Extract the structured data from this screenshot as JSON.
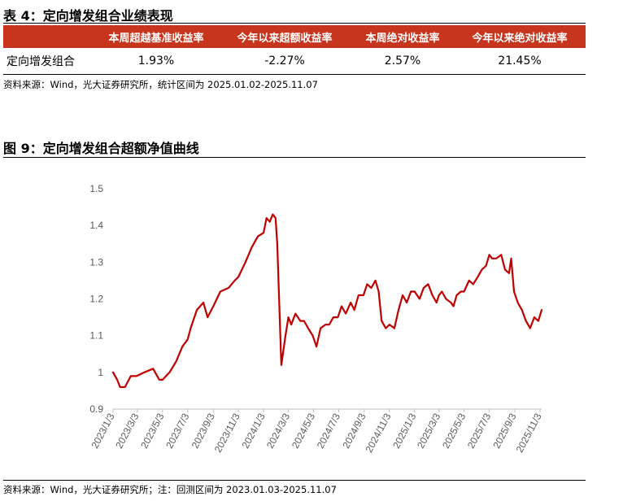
{
  "table": {
    "title": "表 4：定向增发组合业绩表现",
    "headers": [
      "",
      "本周超越基准收益率",
      "今年以来超额收益率",
      "本周绝对收益率",
      "今年以来绝对收益率"
    ],
    "row": {
      "label": "定向增发组合",
      "values": [
        "1.93%",
        "-2.27%",
        "2.57%",
        "21.45%"
      ]
    },
    "source": "资料来源：Wind，光大证券研究所，统计区间为 2025.01.02-2025.11.07",
    "header_color": "#C8351E"
  },
  "figure": {
    "title": "图 9：定向增发组合超额净值曲线",
    "source": "资料来源：Wind，光大证券研究所；注：回测区间为 2023.01.03-2025.11.07"
  },
  "chart_data": {
    "type": "line",
    "line_color": "#C00000",
    "ylim": [
      0.9,
      1.5
    ],
    "y_ticks": [
      "0.9",
      "1",
      "1.1",
      "1.2",
      "1.3",
      "1.4",
      "1.5"
    ],
    "x_ticks": [
      "2023/1/3",
      "2023/3/3",
      "2023/5/3",
      "2023/7/3",
      "2023/9/3",
      "2023/11/3",
      "2024/1/3",
      "2024/3/3",
      "2024/5/3",
      "2024/7/3",
      "2024/9/3",
      "2024/11/3",
      "2025/1/3",
      "2025/3/3",
      "2025/5/3",
      "2025/7/3",
      "2025/9/3",
      "2025/11/3"
    ],
    "xlim": [
      "2023/1/3",
      "2025/11/7"
    ],
    "grid": false,
    "series": [
      {
        "x": [
          "2023/1/3",
          "2023/1/13",
          "2023/1/20",
          "2023/2/1",
          "2023/2/15",
          "2023/3/1",
          "2023/3/20",
          "2023/4/10",
          "2023/4/25",
          "2023/5/3",
          "2023/5/20",
          "2023/6/5",
          "2023/6/20",
          "2023/7/3",
          "2023/7/10",
          "2023/7/25",
          "2023/8/10",
          "2023/8/20",
          "2023/9/3",
          "2023/9/20",
          "2023/10/10",
          "2023/10/25",
          "2023/11/3",
          "2023/11/20",
          "2023/12/5",
          "2023/12/20",
          "2024/1/3",
          "2024/1/10",
          "2024/1/18",
          "2024/1/25",
          "2024/2/1",
          "2024/2/5",
          "2024/2/15",
          "2024/2/25",
          "2024/3/3",
          "2024/3/10",
          "2024/3/20",
          "2024/4/1",
          "2024/4/10",
          "2024/4/20",
          "2024/5/1",
          "2024/5/10",
          "2024/5/20",
          "2024/6/1",
          "2024/6/10",
          "2024/6/20",
          "2024/7/1",
          "2024/7/10",
          "2024/7/20",
          "2024/8/1",
          "2024/8/10",
          "2024/8/20",
          "2024/9/1",
          "2024/9/10",
          "2024/9/20",
          "2024/9/30",
          "2024/10/8",
          "2024/10/15",
          "2024/10/25",
          "2024/11/3",
          "2024/11/15",
          "2024/11/25",
          "2024/12/5",
          "2024/12/15",
          "2024/12/25",
          "2025/1/3",
          "2025/1/15",
          "2025/1/25",
          "2025/2/5",
          "2025/2/15",
          "2025/2/25",
          "2025/3/3",
          "2025/3/10",
          "2025/3/20",
          "2025/4/1",
          "2025/4/7",
          "2025/4/15",
          "2025/4/25",
          "2025/5/3",
          "2025/5/15",
          "2025/5/25",
          "2025/6/5",
          "2025/6/15",
          "2025/6/25",
          "2025/7/3",
          "2025/7/10",
          "2025/7/20",
          "2025/8/1",
          "2025/8/10",
          "2025/8/20",
          "2025/8/25",
          "2025/9/1",
          "2025/9/10",
          "2025/9/20",
          "2025/9/30",
          "2025/10/10",
          "2025/10/20",
          "2025/10/30",
          "2025/11/7"
        ],
        "y": [
          1.0,
          0.98,
          0.96,
          0.96,
          0.99,
          0.99,
          1.0,
          1.01,
          0.98,
          0.98,
          1.0,
          1.03,
          1.07,
          1.09,
          1.12,
          1.17,
          1.19,
          1.15,
          1.18,
          1.22,
          1.23,
          1.25,
          1.26,
          1.3,
          1.34,
          1.37,
          1.38,
          1.42,
          1.41,
          1.43,
          1.42,
          1.35,
          1.02,
          1.1,
          1.15,
          1.13,
          1.16,
          1.14,
          1.14,
          1.12,
          1.1,
          1.07,
          1.12,
          1.13,
          1.13,
          1.15,
          1.15,
          1.18,
          1.16,
          1.19,
          1.17,
          1.21,
          1.21,
          1.24,
          1.23,
          1.25,
          1.22,
          1.14,
          1.12,
          1.13,
          1.12,
          1.17,
          1.21,
          1.19,
          1.22,
          1.22,
          1.2,
          1.23,
          1.24,
          1.21,
          1.19,
          1.21,
          1.22,
          1.2,
          1.19,
          1.18,
          1.21,
          1.22,
          1.22,
          1.25,
          1.24,
          1.26,
          1.28,
          1.29,
          1.32,
          1.31,
          1.31,
          1.32,
          1.28,
          1.27,
          1.31,
          1.22,
          1.19,
          1.17,
          1.14,
          1.12,
          1.15,
          1.14,
          1.17
        ]
      }
    ]
  }
}
